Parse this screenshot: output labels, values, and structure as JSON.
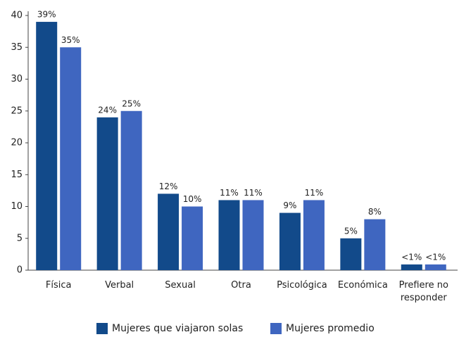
{
  "chart_data": {
    "type": "bar",
    "categories": [
      "Física",
      "Verbal",
      "Sexual",
      "Otra",
      "Psicológica",
      "Económica",
      "Prefiere no responder"
    ],
    "series": [
      {
        "name": "Mujeres que viajaron solas",
        "color": "#124a8a",
        "values": [
          39,
          24,
          12,
          11,
          9,
          5,
          0.9
        ],
        "value_labels": [
          "39%",
          "24%",
          "12%",
          "11%",
          "9%",
          "5%",
          "<1%"
        ]
      },
      {
        "name": "Mujeres promedio",
        "color": "#3f66c0",
        "values": [
          35,
          25,
          10,
          11,
          11,
          8,
          0.9
        ],
        "value_labels": [
          "35%",
          "25%",
          "10%",
          "11%",
          "11%",
          "8%",
          "<1%"
        ]
      }
    ],
    "ylim": [
      0,
      40
    ],
    "yticks": [
      0,
      5,
      10,
      15,
      20,
      25,
      30,
      35,
      40
    ],
    "grid": false
  }
}
